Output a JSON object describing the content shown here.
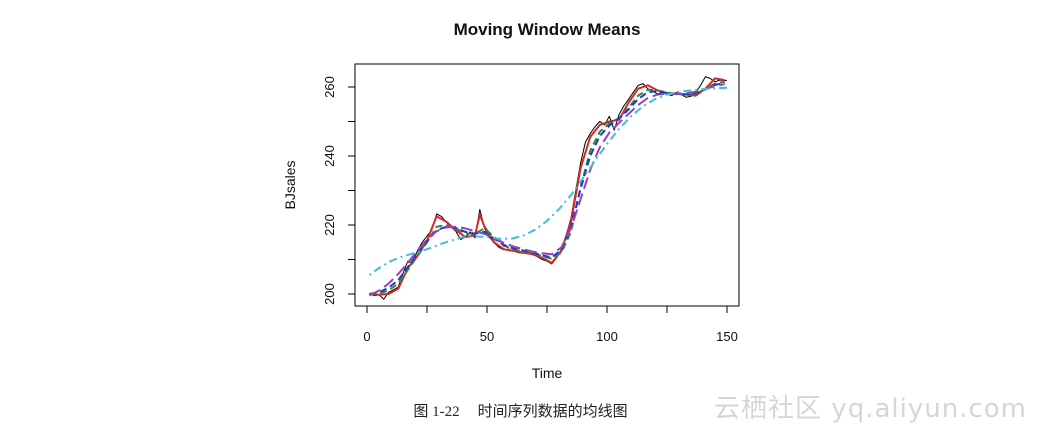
{
  "chart_data": {
    "type": "line",
    "title": "Moving Window Means",
    "xlabel": "Time",
    "ylabel": "BJsales",
    "xlim": [
      0,
      150
    ],
    "ylim": [
      198,
      264
    ],
    "xticks": [
      0,
      50,
      100,
      150
    ],
    "yticks": [
      200,
      220,
      240,
      260
    ],
    "xtick_labels": [
      "0",
      "50",
      "100",
      "150"
    ],
    "ytick_labels": [
      "200",
      "220",
      "240",
      "260"
    ],
    "grid": false,
    "series": [
      {
        "color": "#000000",
        "dash": "solid",
        "x": [
          1,
          3,
          5,
          7,
          9,
          11,
          13,
          15,
          17,
          19,
          21,
          23,
          25,
          27,
          29,
          31,
          33,
          35,
          37,
          39,
          41,
          43,
          45,
          47,
          49,
          51,
          53,
          55,
          57,
          59,
          61,
          63,
          65,
          67,
          69,
          71,
          73,
          75,
          77,
          79,
          81,
          83,
          85,
          87,
          89,
          91,
          93,
          95,
          97,
          99,
          101,
          103,
          105,
          107,
          109,
          111,
          113,
          115,
          117,
          119,
          121,
          123,
          125,
          127,
          129,
          131,
          133,
          135,
          137,
          139,
          141,
          143,
          145,
          147,
          149,
          150
        ],
        "y": [
          200.1,
          199.5,
          199.8,
          198.5,
          200.5,
          201.2,
          202.0,
          206.0,
          209.5,
          208.8,
          212.5,
          215.0,
          216.8,
          218.5,
          223.2,
          222.5,
          220.8,
          219.5,
          218.2,
          215.8,
          216.5,
          218.0,
          216.3,
          224.5,
          219.0,
          216.5,
          214.8,
          213.5,
          212.8,
          213.0,
          212.5,
          212.0,
          211.8,
          212.5,
          211.5,
          210.8,
          210.0,
          209.5,
          208.7,
          210.5,
          213.0,
          217.0,
          222.0,
          230.0,
          238.0,
          244.0,
          246.5,
          248.5,
          250.0,
          249.0,
          251.5,
          247.5,
          252.0,
          254.5,
          256.5,
          258.5,
          260.5,
          261.0,
          259.5,
          258.8,
          258.0,
          258.4,
          258.0,
          257.5,
          258.5,
          257.8,
          257.0,
          257.3,
          258.5,
          260.5,
          263.0,
          262.5,
          261.5,
          262.0,
          261.8,
          262.0
        ]
      },
      {
        "color": "#d4282a",
        "dash": "solid",
        "x": [
          1,
          5,
          9,
          13,
          17,
          21,
          25,
          29,
          33,
          37,
          41,
          45,
          47,
          49,
          53,
          57,
          61,
          65,
          69,
          73,
          77,
          81,
          85,
          89,
          93,
          97,
          101,
          105,
          109,
          113,
          117,
          121,
          125,
          129,
          133,
          137,
          141,
          145,
          149
        ],
        "y": [
          200.0,
          199.8,
          200.0,
          201.5,
          207.5,
          211.0,
          215.5,
          222.5,
          221.0,
          218.5,
          216.5,
          217.0,
          223.0,
          219.5,
          215.0,
          213.0,
          212.5,
          212.0,
          211.5,
          210.5,
          209.0,
          212.5,
          221.0,
          236.5,
          245.5,
          249.0,
          250.0,
          250.5,
          255.5,
          259.5,
          260.5,
          259.0,
          258.2,
          258.0,
          257.8,
          257.5,
          259.5,
          262.5,
          262.0
        ]
      },
      {
        "color": "#2e8b3a",
        "dash": "dashed",
        "x": [
          1,
          5,
          9,
          13,
          17,
          21,
          25,
          29,
          33,
          37,
          41,
          45,
          49,
          53,
          57,
          61,
          65,
          69,
          73,
          77,
          81,
          85,
          89,
          93,
          97,
          101,
          105,
          109,
          113,
          117,
          121,
          125,
          129,
          133,
          137,
          141,
          145,
          149
        ],
        "y": [
          199.8,
          200.2,
          201.0,
          203.0,
          207.0,
          211.0,
          215.0,
          219.5,
          220.0,
          219.0,
          217.5,
          217.5,
          219.0,
          216.5,
          214.0,
          213.0,
          212.3,
          211.8,
          211.0,
          210.2,
          212.0,
          218.0,
          231.0,
          241.5,
          247.0,
          249.5,
          251.0,
          254.0,
          257.5,
          259.2,
          259.0,
          258.4,
          258.0,
          257.8,
          258.0,
          259.5,
          261.0,
          261.5
        ]
      },
      {
        "color": "#1f3cc4",
        "dash": "dashed",
        "x": [
          1,
          5,
          9,
          13,
          17,
          21,
          25,
          29,
          33,
          37,
          41,
          45,
          49,
          53,
          57,
          61,
          65,
          69,
          73,
          77,
          81,
          85,
          89,
          93,
          97,
          101,
          105,
          109,
          113,
          117,
          121,
          125,
          129,
          133,
          137,
          141,
          145,
          149
        ],
        "y": [
          200.0,
          200.5,
          201.8,
          204.0,
          207.8,
          211.8,
          215.2,
          218.5,
          219.5,
          219.2,
          218.0,
          217.5,
          218.0,
          216.0,
          214.2,
          213.2,
          212.6,
          212.0,
          211.2,
          210.6,
          212.8,
          219.5,
          230.5,
          240.0,
          245.8,
          248.8,
          250.8,
          253.5,
          256.5,
          258.5,
          258.8,
          258.3,
          258.0,
          257.9,
          258.2,
          259.3,
          260.6,
          261.2
        ]
      },
      {
        "color": "#9b3fb5",
        "dash": "longdash",
        "x": [
          1,
          5,
          9,
          13,
          17,
          21,
          25,
          29,
          33,
          37,
          41,
          45,
          49,
          53,
          57,
          61,
          65,
          69,
          73,
          77,
          81,
          85,
          89,
          93,
          97,
          101,
          105,
          109,
          113,
          117,
          121,
          125,
          129,
          133,
          137,
          141,
          145,
          149
        ],
        "y": [
          199.6,
          201.0,
          203.0,
          205.8,
          209.0,
          212.6,
          215.8,
          218.2,
          219.3,
          219.5,
          219.0,
          218.2,
          217.4,
          216.2,
          214.8,
          213.8,
          213.0,
          212.3,
          211.8,
          211.5,
          213.5,
          219.0,
          227.5,
          236.0,
          242.5,
          246.8,
          249.6,
          252.2,
          254.8,
          256.8,
          257.8,
          258.1,
          258.1,
          258.2,
          258.6,
          259.4,
          260.3,
          260.8
        ]
      },
      {
        "color": "#3fbfd1",
        "dash": "dotdash",
        "x": [
          1,
          5,
          10,
          15,
          20,
          25,
          30,
          35,
          40,
          45,
          50,
          55,
          60,
          65,
          70,
          75,
          80,
          85,
          90,
          95,
          100,
          105,
          110,
          115,
          120,
          125,
          130,
          135,
          140,
          145,
          150
        ],
        "y": [
          205.5,
          207.5,
          209.6,
          210.9,
          211.9,
          213.0,
          214.3,
          215.5,
          216.4,
          216.7,
          216.5,
          216.0,
          216.0,
          216.9,
          218.6,
          221.2,
          224.6,
          228.7,
          233.6,
          238.6,
          243.5,
          247.8,
          251.5,
          254.4,
          256.5,
          257.8,
          258.6,
          259.0,
          259.4,
          259.6,
          259.8
        ]
      }
    ]
  },
  "caption": {
    "figure_number": "图 1-22",
    "text": "时间序列数据的均线图"
  },
  "watermark": {
    "text": "云栖社区 yq.aliyun.com"
  }
}
